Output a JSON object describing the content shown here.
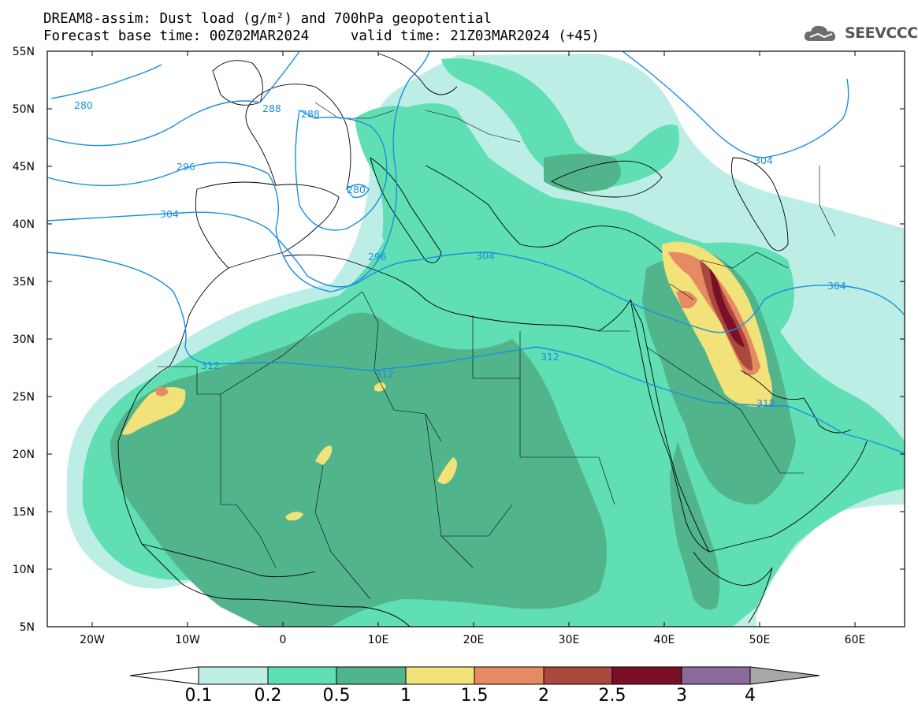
{
  "title": {
    "line1": "DREAM8-assim: Dust load (g/m²) and 700hPa geopotential",
    "line2": "Forecast base time: 00Z02MAR2024     valid time: 21Z03MAR2024 (+45)"
  },
  "logo": {
    "text": "SEEVCCC",
    "icon": "cloud-icon"
  },
  "axes": {
    "lat_labels": [
      "55N",
      "50N",
      "45N",
      "40N",
      "35N",
      "30N",
      "25N",
      "20N",
      "15N",
      "10N",
      "5N"
    ],
    "lon_labels": [
      "20W",
      "10W",
      "0",
      "10E",
      "20E",
      "30E",
      "40E",
      "50E",
      "60E"
    ],
    "lat_range": [
      5,
      55
    ],
    "lon_range": [
      -25,
      65
    ]
  },
  "contour_labels": [
    "280",
    "288",
    "288",
    "296",
    "280",
    "304",
    "296",
    "304",
    "304",
    "312",
    "312",
    "312",
    "304",
    "312"
  ],
  "colorbar": {
    "labels": [
      "0.1",
      "0.2",
      "0.5",
      "1",
      "1.5",
      "2",
      "2.5",
      "3",
      "4"
    ],
    "colors": [
      "#ffffff",
      "#bdeee6",
      "#5fdfb3",
      "#52b48a",
      "#f1e27a",
      "#e58a62",
      "#a9493d",
      "#7c0f28",
      "#8b6a9c",
      "#a8a8a8"
    ]
  },
  "colors": {
    "contour": "#1a8fe0",
    "border": "#000000"
  }
}
